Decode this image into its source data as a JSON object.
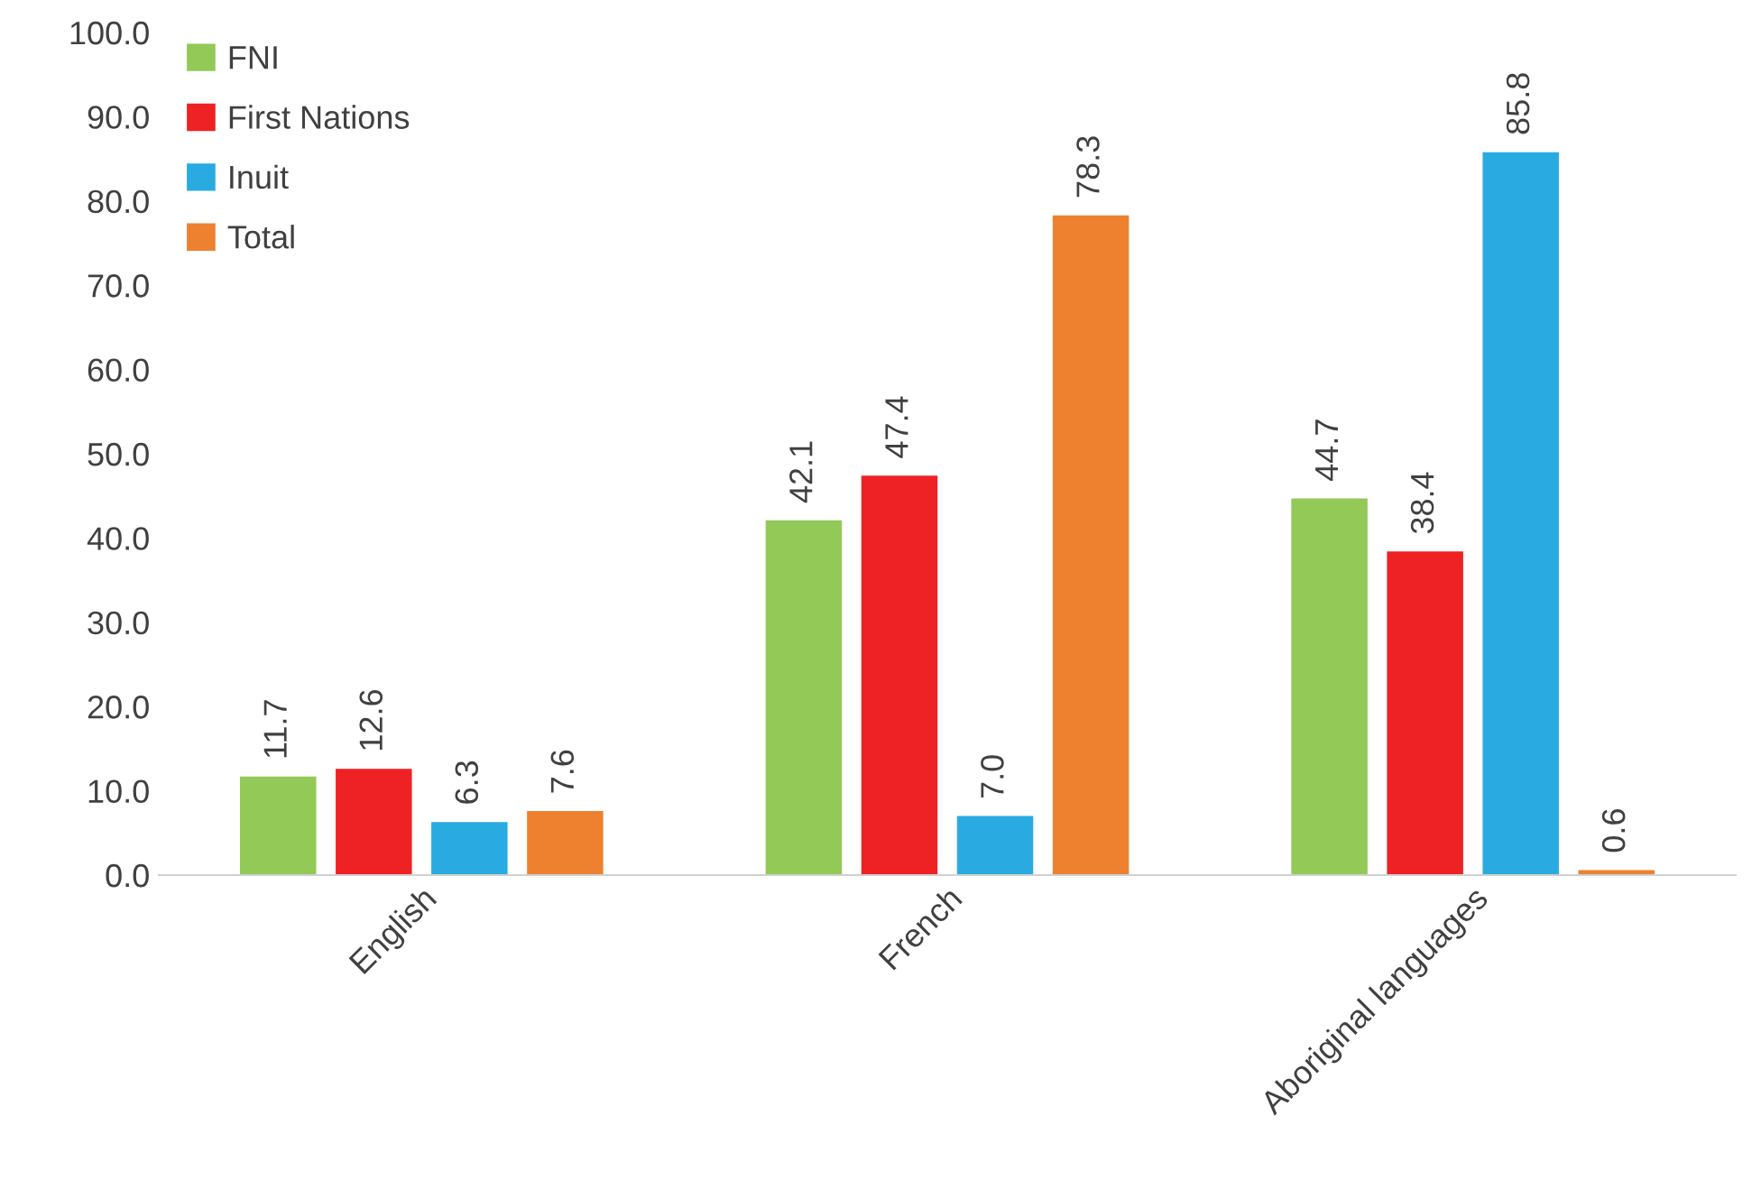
{
  "chart_data": {
    "type": "bar",
    "categories": [
      "English",
      "French",
      "Aboriginal languages"
    ],
    "series": [
      {
        "name": "FNI",
        "color": "#92c957",
        "values": [
          11.7,
          42.1,
          44.7
        ],
        "value_labels": [
          "11.7",
          "42.1",
          "44.7"
        ]
      },
      {
        "name": "First Nations",
        "color": "#ee2224",
        "values": [
          12.6,
          47.4,
          38.4
        ],
        "value_labels": [
          "12.6",
          "47.4",
          "38.4"
        ]
      },
      {
        "name": "Inuit",
        "color": "#29abe2",
        "values": [
          6.3,
          7.0,
          85.8
        ],
        "value_labels": [
          "6.3",
          "7.0",
          "85.8"
        ]
      },
      {
        "name": "Total",
        "color": "#ee8130",
        "values": [
          7.6,
          78.3,
          0.6
        ],
        "value_labels": [
          "7.6",
          "78.3",
          "0.6"
        ]
      }
    ],
    "ylim": [
      0,
      100
    ],
    "yticks": [
      {
        "value": 0,
        "label": "0.0"
      },
      {
        "value": 10,
        "label": "10.0"
      },
      {
        "value": 20,
        "label": "20.0"
      },
      {
        "value": 30,
        "label": "30.0"
      },
      {
        "value": 40,
        "label": "40.0"
      },
      {
        "value": 50,
        "label": "50.0"
      },
      {
        "value": 60,
        "label": "60.0"
      },
      {
        "value": 70,
        "label": "70.0"
      },
      {
        "value": 80,
        "label": "80.0"
      },
      {
        "value": 90,
        "label": "90.0"
      },
      {
        "value": 100,
        "label": "100.0"
      }
    ],
    "grid": false,
    "legend": "top left"
  }
}
